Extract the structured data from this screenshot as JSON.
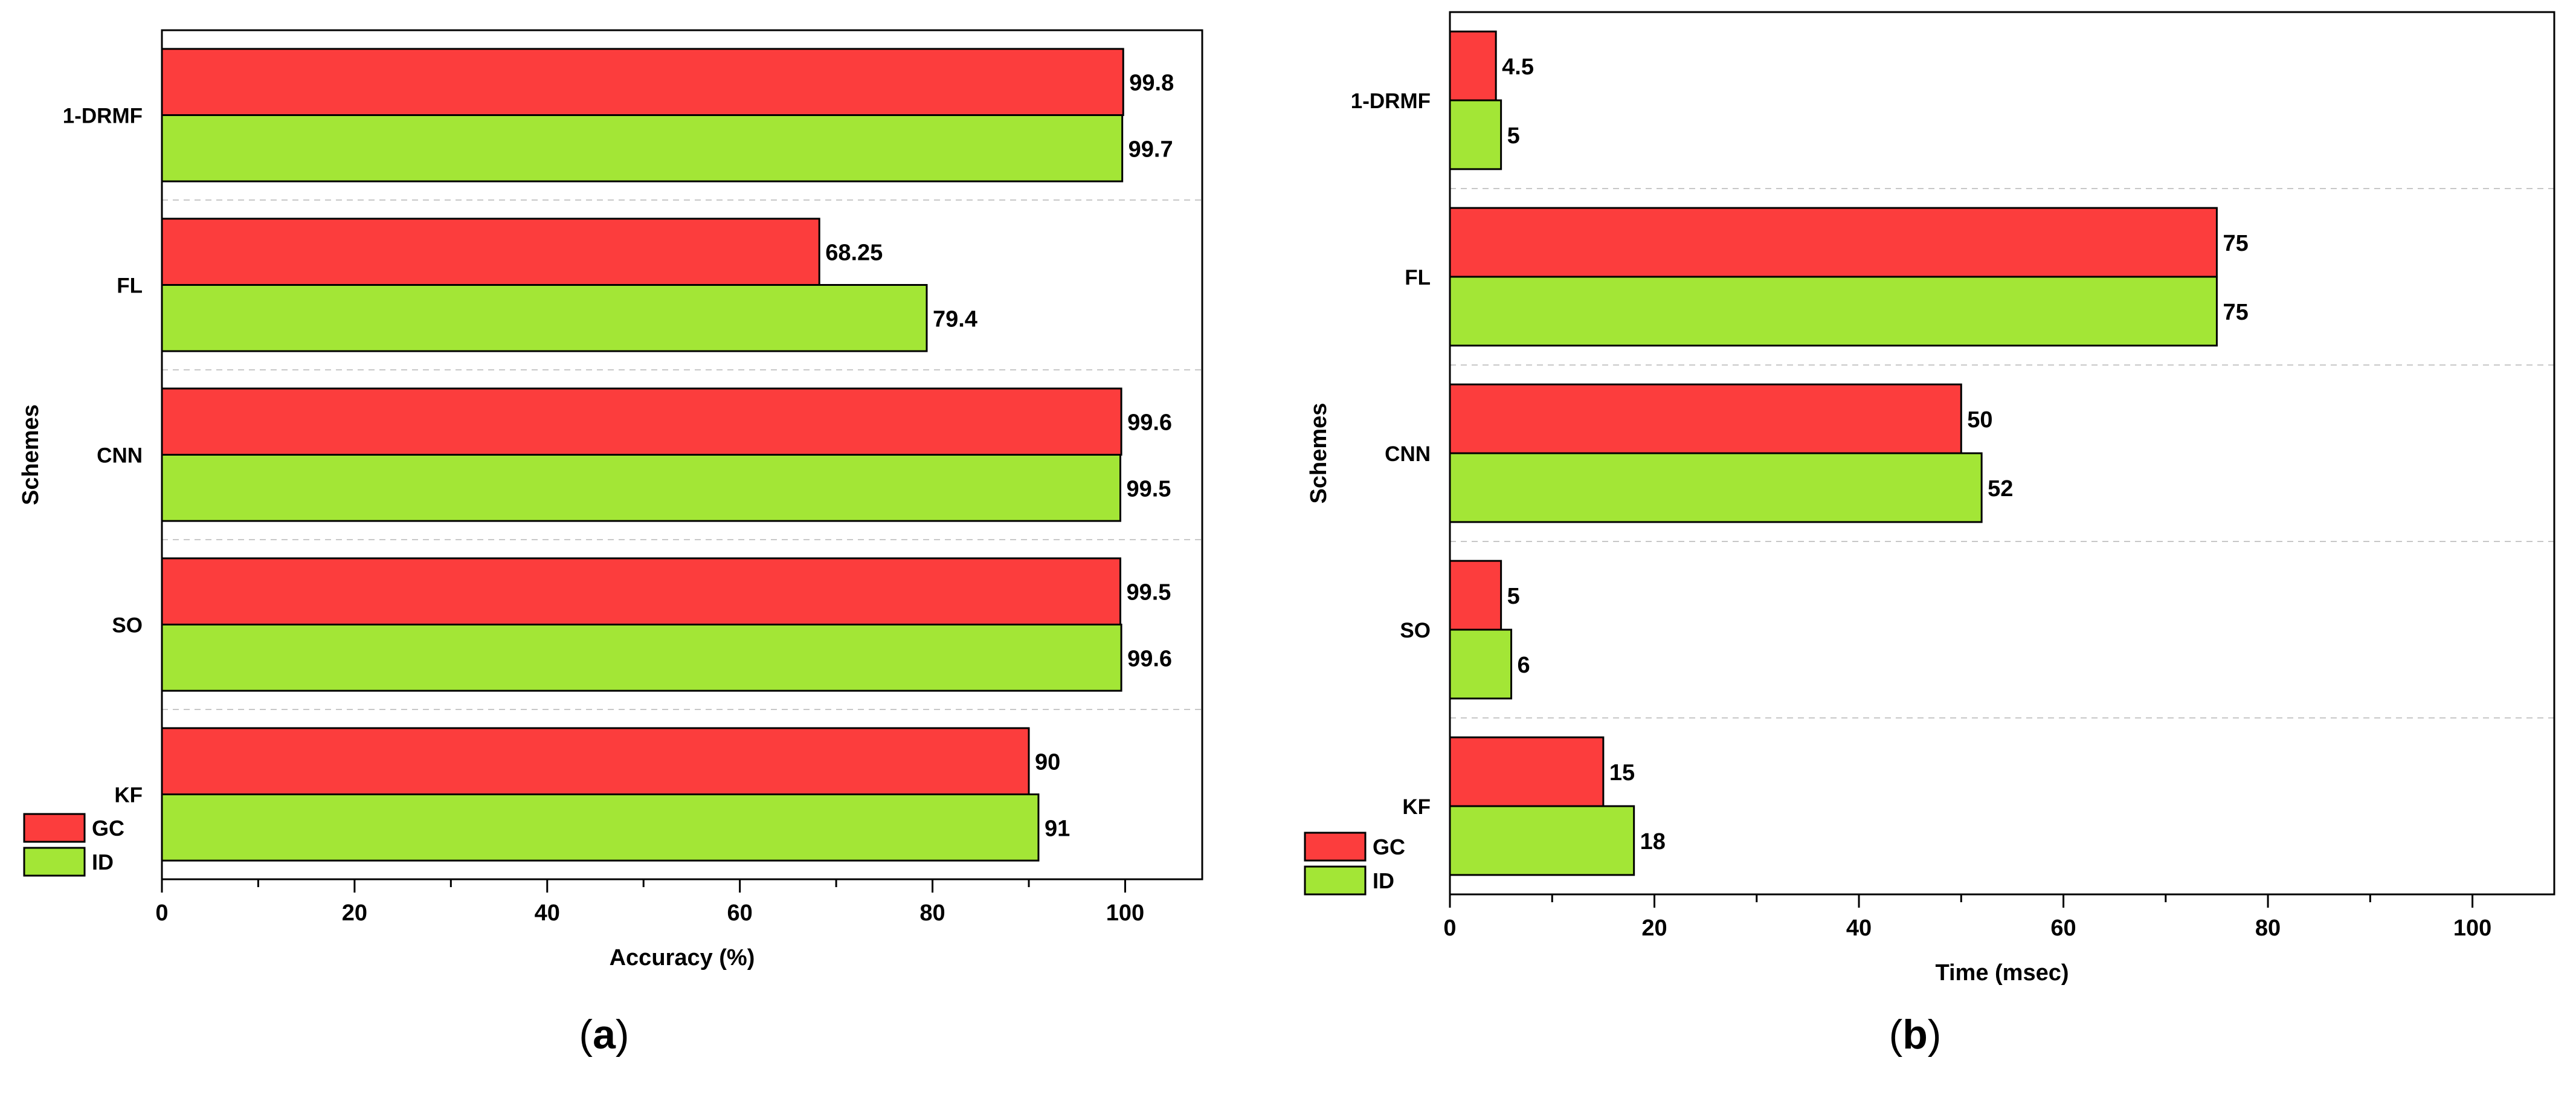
{
  "colors": {
    "gc": "#fc3d3d",
    "id": "#a3e636",
    "stroke": "#000000",
    "grid": "#c8c8c8"
  },
  "chart_data": [
    {
      "type": "bar",
      "orientation": "horizontal",
      "panel_label": "a",
      "title": "",
      "xlabel": "Accuracy (%)",
      "ylabel": "Schemes",
      "categories": [
        "1-DRMF",
        "FL",
        "CNN",
        "SO",
        "KF"
      ],
      "series": [
        {
          "name": "GC",
          "values": [
            99.8,
            68.25,
            99.6,
            99.5,
            90
          ],
          "labels": [
            "99.8",
            "68.25",
            "99.6",
            "99.5",
            "90"
          ]
        },
        {
          "name": "ID",
          "values": [
            99.7,
            79.4,
            99.5,
            99.6,
            91
          ],
          "labels": [
            "99.7",
            "79.4",
            "99.5",
            "99.6",
            "91"
          ]
        }
      ],
      "xlim": [
        0,
        108
      ],
      "xticks": [
        "0",
        "20",
        "40",
        "60",
        "80",
        "100"
      ],
      "legend": "bottom-left",
      "grid": "horizontal dashed separators"
    },
    {
      "type": "bar",
      "orientation": "horizontal",
      "panel_label": "b",
      "title": "",
      "xlabel": "Time (msec)",
      "ylabel": "Schemes",
      "categories": [
        "1-DRMF",
        "FL",
        "CNN",
        "SO",
        "KF"
      ],
      "series": [
        {
          "name": "GC",
          "values": [
            4.5,
            75,
            50,
            5,
            15
          ],
          "labels": [
            "4.5",
            "75",
            "50",
            "5",
            "15"
          ]
        },
        {
          "name": "ID",
          "values": [
            5,
            75,
            52,
            6,
            18
          ],
          "labels": [
            "5",
            "75",
            "52",
            "6",
            "18"
          ]
        }
      ],
      "xlim": [
        0,
        108
      ],
      "xticks": [
        "0",
        "20",
        "40",
        "60",
        "80",
        "100"
      ],
      "legend": "bottom-left",
      "grid": "horizontal dashed separators"
    }
  ]
}
